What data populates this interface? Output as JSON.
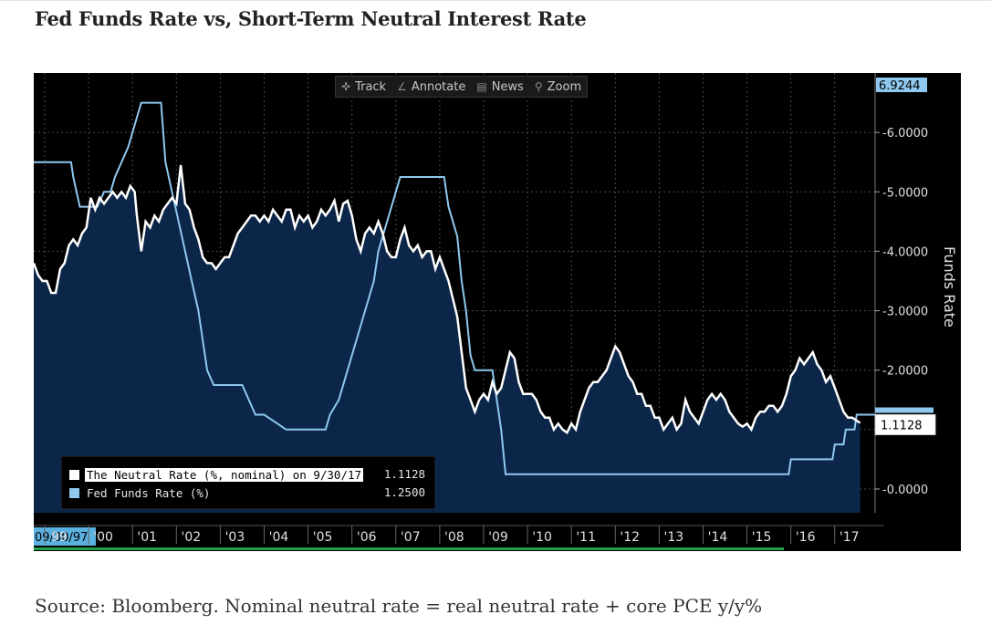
{
  "page": {
    "title": "Fed Funds Rate vs, Short-Term Neutral Interest Rate",
    "source": "Source: Bloomberg. Nominal neutral rate = real neutral rate + core PCE y/y%"
  },
  "toolbar": {
    "items": [
      {
        "label": "Track",
        "icon": "crosshair-icon"
      },
      {
        "label": "Annotate",
        "icon": "pencil-icon"
      },
      {
        "label": "News",
        "icon": "news-icon"
      },
      {
        "label": "Zoom",
        "icon": "magnifier-icon"
      }
    ]
  },
  "colors": {
    "neutral": "#ffffff",
    "fedfunds": "#8ec8ee",
    "fill": "#0b2648",
    "background": "#000000",
    "grid": "#4a4a4a",
    "axis_text": "#e0e0e0",
    "start_label_bg": "#5ab0e0",
    "top_label_bg": "#8ec8ee",
    "green": "#1fa34a"
  },
  "chart_data": {
    "type": "line",
    "title": "Fed Funds Rate vs, Short-Term Neutral Interest Rate",
    "ylabel": "Funds Rate",
    "xlabel": "",
    "ylim": [
      -0.4,
      7.0
    ],
    "xlim": [
      1998.75,
      2017.92
    ],
    "y_axis_position": "right",
    "yticks": [
      0,
      1,
      2,
      3,
      4,
      5,
      6
    ],
    "ytick_labels": [
      "0.0000",
      "1.0000",
      "2.0000",
      "3.0000",
      "4.0000",
      "5.0000",
      "6.0000"
    ],
    "top_value_label": "6.9244",
    "start_date_label": "09/30/97",
    "xticks": [
      {
        "label": "99",
        "x": 1999.0
      },
      {
        "label": "'00",
        "x": 2000.0
      },
      {
        "label": "'01",
        "x": 2001.0
      },
      {
        "label": "'02",
        "x": 2002.0
      },
      {
        "label": "'03",
        "x": 2003.0
      },
      {
        "label": "'04",
        "x": 2004.0
      },
      {
        "label": "'05",
        "x": 2005.0
      },
      {
        "label": "'06",
        "x": 2006.0
      },
      {
        "label": "'07",
        "x": 2007.0
      },
      {
        "label": "'08",
        "x": 2008.0
      },
      {
        "label": "'09",
        "x": 2009.0
      },
      {
        "label": "'10",
        "x": 2010.0
      },
      {
        "label": "'11",
        "x": 2011.0
      },
      {
        "label": "'12",
        "x": 2012.0
      },
      {
        "label": "'13",
        "x": 2013.0
      },
      {
        "label": "'14",
        "x": 2014.0
      },
      {
        "label": "'15",
        "x": 2015.0
      },
      {
        "label": "'16",
        "x": 2016.0
      },
      {
        "label": "'17",
        "x": 2017.0
      }
    ],
    "grid": true,
    "legend_position": "bottom-left",
    "series": [
      {
        "name": "The Neutral Rate (%, nominal) on 9/30/17",
        "last_value": "1.1128",
        "color": "#ffffff",
        "fill": true,
        "points": [
          [
            1998.75,
            3.8
          ],
          [
            1998.85,
            3.6
          ],
          [
            1998.95,
            3.5
          ],
          [
            1999.05,
            3.5
          ],
          [
            1999.15,
            3.3
          ],
          [
            1999.25,
            3.3
          ],
          [
            1999.35,
            3.7
          ],
          [
            1999.45,
            3.8
          ],
          [
            1999.55,
            4.1
          ],
          [
            1999.65,
            4.2
          ],
          [
            1999.75,
            4.1
          ],
          [
            1999.85,
            4.3
          ],
          [
            1999.95,
            4.4
          ],
          [
            2000.05,
            4.9
          ],
          [
            2000.15,
            4.7
          ],
          [
            2000.25,
            4.9
          ],
          [
            2000.35,
            4.8
          ],
          [
            2000.45,
            4.9
          ],
          [
            2000.55,
            5.0
          ],
          [
            2000.65,
            4.9
          ],
          [
            2000.75,
            5.0
          ],
          [
            2000.85,
            4.9
          ],
          [
            2000.95,
            5.1
          ],
          [
            2001.05,
            5.0
          ],
          [
            2001.1,
            4.6
          ],
          [
            2001.2,
            4.0
          ],
          [
            2001.3,
            4.5
          ],
          [
            2001.4,
            4.4
          ],
          [
            2001.5,
            4.6
          ],
          [
            2001.6,
            4.5
          ],
          [
            2001.7,
            4.7
          ],
          [
            2001.8,
            4.8
          ],
          [
            2001.9,
            4.9
          ],
          [
            2002.0,
            4.8
          ],
          [
            2002.1,
            5.45
          ],
          [
            2002.2,
            4.8
          ],
          [
            2002.3,
            4.7
          ],
          [
            2002.4,
            4.4
          ],
          [
            2002.5,
            4.2
          ],
          [
            2002.6,
            3.9
          ],
          [
            2002.7,
            3.8
          ],
          [
            2002.8,
            3.8
          ],
          [
            2002.9,
            3.7
          ],
          [
            2003.0,
            3.8
          ],
          [
            2003.1,
            3.9
          ],
          [
            2003.2,
            3.9
          ],
          [
            2003.3,
            4.1
          ],
          [
            2003.4,
            4.3
          ],
          [
            2003.5,
            4.4
          ],
          [
            2003.6,
            4.5
          ],
          [
            2003.7,
            4.6
          ],
          [
            2003.8,
            4.6
          ],
          [
            2003.9,
            4.5
          ],
          [
            2004.0,
            4.6
          ],
          [
            2004.1,
            4.5
          ],
          [
            2004.2,
            4.7
          ],
          [
            2004.3,
            4.6
          ],
          [
            2004.4,
            4.5
          ],
          [
            2004.5,
            4.7
          ],
          [
            2004.6,
            4.7
          ],
          [
            2004.7,
            4.4
          ],
          [
            2004.8,
            4.6
          ],
          [
            2004.9,
            4.5
          ],
          [
            2005.0,
            4.6
          ],
          [
            2005.1,
            4.4
          ],
          [
            2005.2,
            4.5
          ],
          [
            2005.3,
            4.7
          ],
          [
            2005.4,
            4.6
          ],
          [
            2005.5,
            4.7
          ],
          [
            2005.6,
            4.85
          ],
          [
            2005.7,
            4.5
          ],
          [
            2005.8,
            4.8
          ],
          [
            2005.9,
            4.85
          ],
          [
            2006.0,
            4.6
          ],
          [
            2006.1,
            4.2
          ],
          [
            2006.2,
            4.0
          ],
          [
            2006.3,
            4.3
          ],
          [
            2006.4,
            4.4
          ],
          [
            2006.5,
            4.3
          ],
          [
            2006.6,
            4.5
          ],
          [
            2006.7,
            4.3
          ],
          [
            2006.8,
            4.0
          ],
          [
            2006.9,
            3.9
          ],
          [
            2007.0,
            3.9
          ],
          [
            2007.1,
            4.2
          ],
          [
            2007.2,
            4.4
          ],
          [
            2007.3,
            4.1
          ],
          [
            2007.4,
            4.0
          ],
          [
            2007.5,
            4.1
          ],
          [
            2007.6,
            3.9
          ],
          [
            2007.7,
            4.0
          ],
          [
            2007.8,
            4.0
          ],
          [
            2007.9,
            3.7
          ],
          [
            2008.0,
            3.9
          ],
          [
            2008.1,
            3.7
          ],
          [
            2008.2,
            3.5
          ],
          [
            2008.3,
            3.2
          ],
          [
            2008.4,
            2.9
          ],
          [
            2008.5,
            2.3
          ],
          [
            2008.6,
            1.7
          ],
          [
            2008.7,
            1.5
          ],
          [
            2008.8,
            1.3
          ],
          [
            2008.9,
            1.5
          ],
          [
            2009.0,
            1.6
          ],
          [
            2009.1,
            1.5
          ],
          [
            2009.2,
            1.8
          ],
          [
            2009.3,
            1.6
          ],
          [
            2009.4,
            1.7
          ],
          [
            2009.5,
            2.0
          ],
          [
            2009.6,
            2.3
          ],
          [
            2009.7,
            2.2
          ],
          [
            2009.8,
            1.8
          ],
          [
            2009.9,
            1.6
          ],
          [
            2010.0,
            1.6
          ],
          [
            2010.1,
            1.6
          ],
          [
            2010.2,
            1.5
          ],
          [
            2010.3,
            1.3
          ],
          [
            2010.4,
            1.2
          ],
          [
            2010.5,
            1.2
          ],
          [
            2010.6,
            1.0
          ],
          [
            2010.7,
            1.1
          ],
          [
            2010.8,
            1.0
          ],
          [
            2010.9,
            0.95
          ],
          [
            2011.0,
            1.1
          ],
          [
            2011.1,
            1.0
          ],
          [
            2011.2,
            1.3
          ],
          [
            2011.3,
            1.5
          ],
          [
            2011.4,
            1.7
          ],
          [
            2011.5,
            1.8
          ],
          [
            2011.6,
            1.8
          ],
          [
            2011.7,
            1.9
          ],
          [
            2011.8,
            2.0
          ],
          [
            2011.9,
            2.2
          ],
          [
            2012.0,
            2.4
          ],
          [
            2012.1,
            2.3
          ],
          [
            2012.2,
            2.1
          ],
          [
            2012.3,
            1.9
          ],
          [
            2012.4,
            1.8
          ],
          [
            2012.5,
            1.6
          ],
          [
            2012.6,
            1.6
          ],
          [
            2012.7,
            1.4
          ],
          [
            2012.8,
            1.4
          ],
          [
            2012.9,
            1.2
          ],
          [
            2013.0,
            1.2
          ],
          [
            2013.1,
            1.0
          ],
          [
            2013.2,
            1.1
          ],
          [
            2013.3,
            1.2
          ],
          [
            2013.4,
            1.0
          ],
          [
            2013.5,
            1.1
          ],
          [
            2013.6,
            1.5
          ],
          [
            2013.7,
            1.3
          ],
          [
            2013.8,
            1.2
          ],
          [
            2013.9,
            1.1
          ],
          [
            2014.0,
            1.3
          ],
          [
            2014.1,
            1.5
          ],
          [
            2014.2,
            1.6
          ],
          [
            2014.3,
            1.5
          ],
          [
            2014.4,
            1.6
          ],
          [
            2014.5,
            1.5
          ],
          [
            2014.6,
            1.3
          ],
          [
            2014.7,
            1.2
          ],
          [
            2014.8,
            1.1
          ],
          [
            2014.9,
            1.05
          ],
          [
            2015.0,
            1.1
          ],
          [
            2015.1,
            1.0
          ],
          [
            2015.2,
            1.2
          ],
          [
            2015.3,
            1.3
          ],
          [
            2015.4,
            1.3
          ],
          [
            2015.5,
            1.4
          ],
          [
            2015.6,
            1.4
          ],
          [
            2015.7,
            1.3
          ],
          [
            2015.8,
            1.4
          ],
          [
            2015.9,
            1.6
          ],
          [
            2016.0,
            1.9
          ],
          [
            2016.1,
            2.0
          ],
          [
            2016.2,
            2.2
          ],
          [
            2016.3,
            2.1
          ],
          [
            2016.4,
            2.2
          ],
          [
            2016.5,
            2.3
          ],
          [
            2016.6,
            2.1
          ],
          [
            2016.7,
            2.0
          ],
          [
            2016.8,
            1.8
          ],
          [
            2016.9,
            1.9
          ],
          [
            2017.0,
            1.7
          ],
          [
            2017.1,
            1.5
          ],
          [
            2017.2,
            1.3
          ],
          [
            2017.3,
            1.2
          ],
          [
            2017.4,
            1.2
          ],
          [
            2017.5,
            1.15
          ],
          [
            2017.58,
            1.1128
          ]
        ]
      },
      {
        "name": "Fed Funds Rate (%)",
        "last_value": "1.2500",
        "color": "#8ec8ee",
        "fill": false,
        "points": [
          [
            1998.75,
            5.5
          ],
          [
            1999.6,
            5.5
          ],
          [
            1999.65,
            5.25
          ],
          [
            1999.8,
            4.75
          ],
          [
            2000.2,
            4.75
          ],
          [
            2000.35,
            5.0
          ],
          [
            2000.5,
            5.0
          ],
          [
            2000.6,
            5.25
          ],
          [
            2000.75,
            5.5
          ],
          [
            2000.9,
            5.75
          ],
          [
            2001.0,
            6.0
          ],
          [
            2001.2,
            6.5
          ],
          [
            2001.65,
            6.5
          ],
          [
            2001.7,
            6.0
          ],
          [
            2001.75,
            5.5
          ],
          [
            2001.9,
            5.0
          ],
          [
            2002.05,
            4.5
          ],
          [
            2002.2,
            4.0
          ],
          [
            2002.35,
            3.5
          ],
          [
            2002.5,
            3.0
          ],
          [
            2002.6,
            2.5
          ],
          [
            2002.7,
            2.0
          ],
          [
            2002.85,
            1.75
          ],
          [
            2003.2,
            1.75
          ],
          [
            2003.5,
            1.75
          ],
          [
            2003.8,
            1.25
          ],
          [
            2004.0,
            1.25
          ],
          [
            2004.5,
            1.0
          ],
          [
            2005.4,
            1.0
          ],
          [
            2005.5,
            1.25
          ],
          [
            2005.7,
            1.5
          ],
          [
            2005.9,
            2.0
          ],
          [
            2006.1,
            2.5
          ],
          [
            2006.3,
            3.0
          ],
          [
            2006.5,
            3.5
          ],
          [
            2006.6,
            4.0
          ],
          [
            2006.8,
            4.5
          ],
          [
            2007.0,
            5.0
          ],
          [
            2007.1,
            5.25
          ],
          [
            2008.1,
            5.25
          ],
          [
            2008.2,
            4.75
          ],
          [
            2008.3,
            4.5
          ],
          [
            2008.4,
            4.25
          ],
          [
            2008.5,
            3.5
          ],
          [
            2008.6,
            3.0
          ],
          [
            2008.7,
            2.25
          ],
          [
            2008.8,
            2.0
          ],
          [
            2009.2,
            2.0
          ],
          [
            2009.3,
            1.5
          ],
          [
            2009.4,
            1.0
          ],
          [
            2009.5,
            0.25
          ],
          [
            2015.95,
            0.25
          ],
          [
            2016.0,
            0.5
          ],
          [
            2016.95,
            0.5
          ],
          [
            2017.0,
            0.75
          ],
          [
            2017.2,
            0.75
          ],
          [
            2017.25,
            1.0
          ],
          [
            2017.45,
            1.0
          ],
          [
            2017.5,
            1.25
          ],
          [
            2017.92,
            1.25
          ]
        ]
      }
    ]
  }
}
